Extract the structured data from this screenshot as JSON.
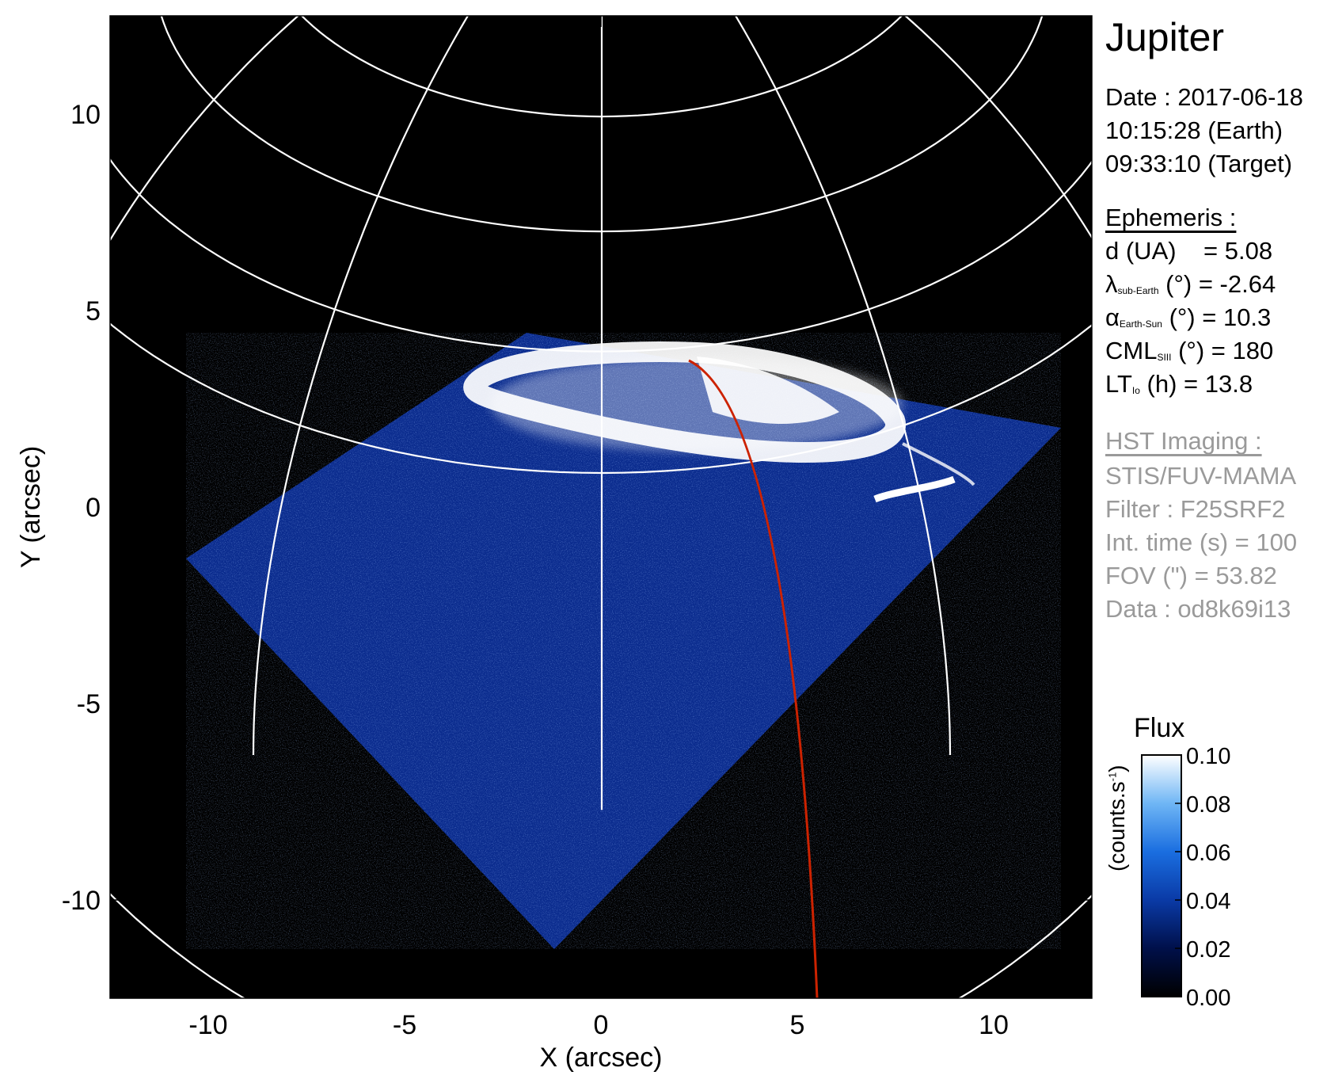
{
  "chart_data": {
    "type": "heatmap",
    "title": "Jupiter",
    "xlabel": "X (arcsec)",
    "ylabel": "Y (arcsec)",
    "xlim": [
      -12.5,
      12.5
    ],
    "ylim": [
      -12.5,
      12.5
    ],
    "xticks": [
      "-10",
      "-5",
      "0",
      "5",
      "10"
    ],
    "yticks": [
      "-10",
      "-5",
      "0",
      "5",
      "10"
    ],
    "xtick_values": [
      -10,
      -5,
      0,
      5,
      10
    ],
    "ytick_values": [
      -10,
      -5,
      0,
      5,
      10
    ],
    "colorbar": {
      "title": "Flux",
      "unit_text": "(counts.s",
      "unit_sup": "-1",
      "unit_close": ")",
      "range": [
        0.0,
        0.1
      ],
      "ticks": [
        "0.00",
        "0.02",
        "0.04",
        "0.06",
        "0.08",
        "0.10"
      ],
      "tick_values": [
        0.0,
        0.02,
        0.04,
        0.06,
        0.08,
        0.1
      ],
      "colors": [
        "#000000",
        "#00104a",
        "#0a3aa6",
        "#1a6ee0",
        "#6fb6f5",
        "#ffffff"
      ]
    },
    "colors": {
      "grid": "#ffffff",
      "footprint": "#cc2200",
      "background": "#000000"
    }
  },
  "info": {
    "date": "Date : 2017-06-18",
    "time_earth": "10:15:28 (Earth)",
    "time_target": "09:33:10 (Target)",
    "ephemeris_header": "Ephemeris :",
    "d_label": "d (UA)",
    "d_value": "= 5.08",
    "lambda_symbol": "λ",
    "lambda_sub": "sub-Earth",
    "lambda_value": "(°) = -2.64",
    "alpha_symbol": "α",
    "alpha_sub": "Earth-Sun",
    "alpha_value": "(°) = 10.3",
    "cml_symbol": "CML",
    "cml_sub": "SIII",
    "cml_value": "(°) = 180",
    "lt_symbol": "LT",
    "lt_sub": "Io",
    "lt_value": "(h) = 13.8",
    "hst_header": "HST Imaging :",
    "instrument": "STIS/FUV-MAMA",
    "filter": "Filter : F25SRF2",
    "int_time": "Int. time (s) = 100",
    "fov": "FOV (\") = 53.82",
    "data_id": "Data : od8k69i13"
  }
}
